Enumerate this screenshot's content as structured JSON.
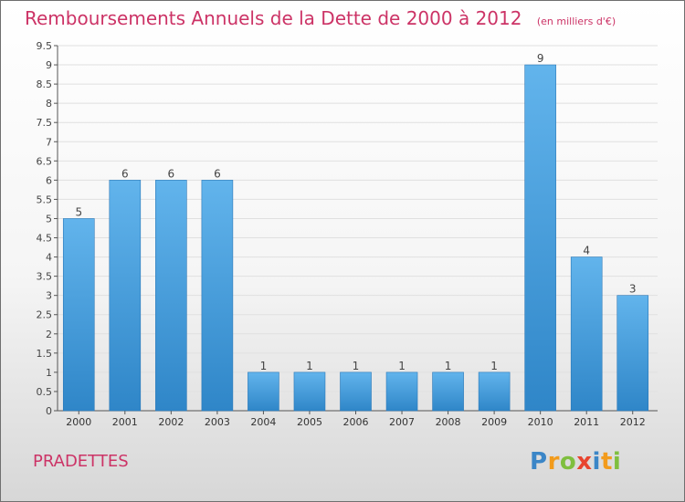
{
  "header": {
    "title": "Remboursements Annuels de la Dette de 2000 à 2012",
    "unit": "(en milliers d'€)"
  },
  "footer": {
    "place": "PRADETTES",
    "brand_letters": [
      {
        "char": "P",
        "color": "#3b86c7"
      },
      {
        "char": "r",
        "color": "#f29b1c"
      },
      {
        "char": "o",
        "color": "#7fbf3f"
      },
      {
        "char": "x",
        "color": "#e8442f"
      },
      {
        "char": "i",
        "color": "#3b86c7"
      },
      {
        "char": "t",
        "color": "#f29b1c"
      },
      {
        "char": "i",
        "color": "#7fbf3f"
      }
    ]
  },
  "colors": {
    "title": "#cc3366",
    "bar_light": "#62b4ec",
    "bar_dark": "#2f86c8",
    "axis": "#555555",
    "grid": "#e0e0e0"
  },
  "chart_data": {
    "type": "bar",
    "title": "Remboursements Annuels de la Dette de 2000 à 2012",
    "subtitle": "(en milliers d'€)",
    "xlabel": "",
    "ylabel": "",
    "categories": [
      "2000",
      "2001",
      "2002",
      "2003",
      "2004",
      "2005",
      "2006",
      "2007",
      "2008",
      "2009",
      "2010",
      "2011",
      "2012"
    ],
    "values": [
      5,
      6,
      6,
      6,
      1,
      1,
      1,
      1,
      1,
      1,
      9,
      4,
      3
    ],
    "data_labels": [
      "5",
      "6",
      "6",
      "6",
      "1",
      "1",
      "1",
      "1",
      "1",
      "1",
      "9",
      "4",
      "3"
    ],
    "ylim": [
      0,
      9.5
    ],
    "yticks": [
      0,
      0.5,
      1,
      1.5,
      2,
      2.5,
      3,
      3.5,
      4,
      4.5,
      5,
      5.5,
      6,
      6.5,
      7,
      7.5,
      8,
      8.5,
      9,
      9.5
    ],
    "ytick_labels": [
      "0",
      "0.5",
      "1",
      "1.5",
      "2",
      "2.5",
      "3",
      "3.5",
      "4",
      "4.5",
      "5",
      "5.5",
      "6",
      "6.5",
      "7",
      "7.5",
      "8",
      "8.5",
      "9",
      "9.5"
    ],
    "grid": true,
    "legend": "none"
  }
}
